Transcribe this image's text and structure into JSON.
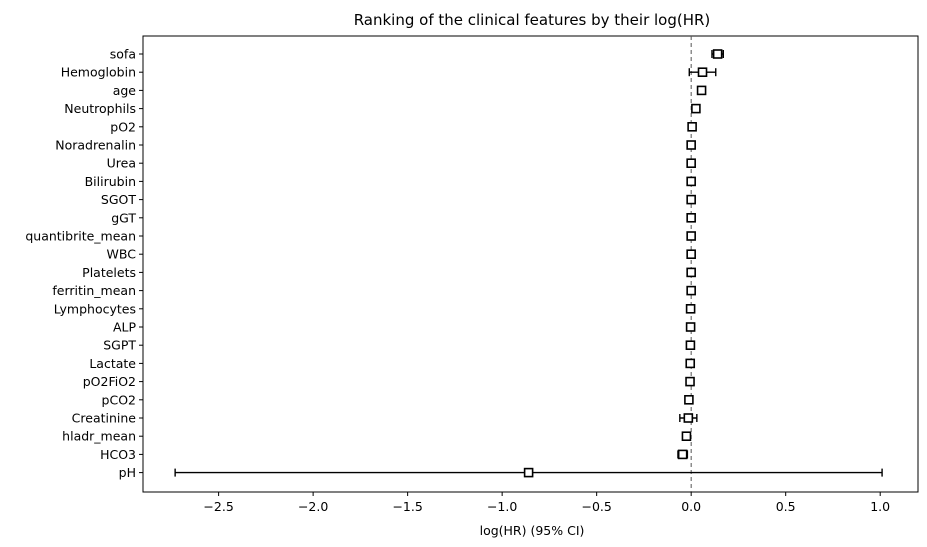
{
  "chart_data": {
    "type": "forest",
    "title": "Ranking of the clinical features by their log(HR)",
    "xlabel": "log(HR) (95% CI)",
    "ylabel": "",
    "xlim": [
      -2.9,
      1.2
    ],
    "xticks": [
      -2.5,
      -2.0,
      -1.5,
      -1.0,
      -0.5,
      0.0,
      0.5,
      1.0
    ],
    "xtick_labels": [
      "−2.5",
      "−2.0",
      "−1.5",
      "−1.0",
      "−0.5",
      "0.0",
      "0.5",
      "1.0"
    ],
    "reference_line": 0.0,
    "grid": false,
    "colors": {
      "marker_edge": "#000000",
      "marker_fill": "#ffffff",
      "ci_line": "#000000",
      "reference": "#555555"
    },
    "features": [
      {
        "label": "sofa",
        "value": 0.14,
        "ci": [
          0.11,
          0.17
        ]
      },
      {
        "label": "Hemoglobin",
        "value": 0.06,
        "ci": [
          -0.01,
          0.13
        ]
      },
      {
        "label": "age",
        "value": 0.055,
        "ci": [
          0.045,
          0.065
        ]
      },
      {
        "label": "Neutrophils",
        "value": 0.025,
        "ci": [
          0.018,
          0.032
        ]
      },
      {
        "label": "pO2",
        "value": 0.005,
        "ci": [
          0.0,
          0.01
        ]
      },
      {
        "label": "Noradrenalin",
        "value": 0.0,
        "ci": [
          -0.005,
          0.005
        ]
      },
      {
        "label": "Urea",
        "value": 0.0,
        "ci": [
          -0.005,
          0.005
        ]
      },
      {
        "label": "Bilirubin",
        "value": 0.0,
        "ci": [
          -0.005,
          0.005
        ]
      },
      {
        "label": "SGOT",
        "value": 0.0,
        "ci": [
          -0.005,
          0.005
        ]
      },
      {
        "label": "gGT",
        "value": 0.0,
        "ci": [
          -0.005,
          0.005
        ]
      },
      {
        "label": "quantibrite_mean",
        "value": 0.0,
        "ci": [
          -0.005,
          0.005
        ]
      },
      {
        "label": "WBC",
        "value": 0.0,
        "ci": [
          -0.005,
          0.005
        ]
      },
      {
        "label": "Platelets",
        "value": 0.0,
        "ci": [
          -0.005,
          0.005
        ]
      },
      {
        "label": "ferritin_mean",
        "value": 0.0,
        "ci": [
          -0.005,
          0.005
        ]
      },
      {
        "label": "Lymphocytes",
        "value": -0.003,
        "ci": [
          -0.008,
          0.002
        ]
      },
      {
        "label": "ALP",
        "value": -0.003,
        "ci": [
          -0.008,
          0.002
        ]
      },
      {
        "label": "SGPT",
        "value": -0.004,
        "ci": [
          -0.009,
          0.001
        ]
      },
      {
        "label": "Lactate",
        "value": -0.005,
        "ci": [
          -0.01,
          0.0
        ]
      },
      {
        "label": "pO2FiO2",
        "value": -0.006,
        "ci": [
          -0.011,
          -0.001
        ]
      },
      {
        "label": "pCO2",
        "value": -0.012,
        "ci": [
          -0.017,
          -0.007
        ]
      },
      {
        "label": "Creatinine",
        "value": -0.015,
        "ci": [
          -0.06,
          0.03
        ]
      },
      {
        "label": "hladr_mean",
        "value": -0.025,
        "ci": [
          -0.03,
          -0.02
        ]
      },
      {
        "label": "HCO3",
        "value": -0.045,
        "ci": [
          -0.07,
          -0.02
        ]
      },
      {
        "label": "pH",
        "value": -0.86,
        "ci": [
          -2.73,
          1.01
        ]
      }
    ]
  }
}
